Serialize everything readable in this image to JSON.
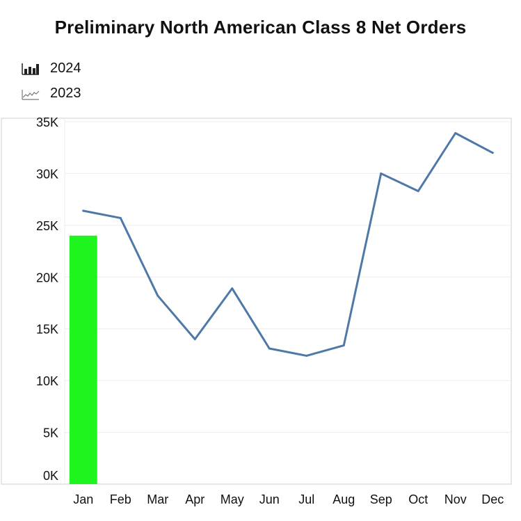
{
  "title": "Preliminary North American Class 8 Net Orders",
  "legend": [
    {
      "label": "2024",
      "icon": "bar-chart-icon"
    },
    {
      "label": "2023",
      "icon": "line-chart-icon"
    }
  ],
  "colors": {
    "bar_2024": "#1ef51e",
    "line_2023": "#4e79a7",
    "grid": "#ececec",
    "frame": "#cfcfcf"
  },
  "chart_data": {
    "type": "bar",
    "title": "Preliminary North American Class 8 Net Orders",
    "categories": [
      "Jan",
      "Feb",
      "Mar",
      "Apr",
      "May",
      "Jun",
      "Jul",
      "Aug",
      "Sep",
      "Oct",
      "Nov",
      "Dec"
    ],
    "series": [
      {
        "name": "2024",
        "type": "bar",
        "values": [
          24000,
          null,
          null,
          null,
          null,
          null,
          null,
          null,
          null,
          null,
          null,
          null
        ]
      },
      {
        "name": "2023",
        "type": "line",
        "values": [
          26400,
          25700,
          18200,
          14000,
          18900,
          13100,
          12400,
          13400,
          30000,
          28300,
          33900,
          32000
        ]
      }
    ],
    "y_ticks": [
      "0K",
      "5K",
      "10K",
      "15K",
      "20K",
      "25K",
      "30K",
      "35K"
    ],
    "ylim": [
      0,
      35000
    ],
    "grid": true,
    "legend_position": "top-left"
  }
}
